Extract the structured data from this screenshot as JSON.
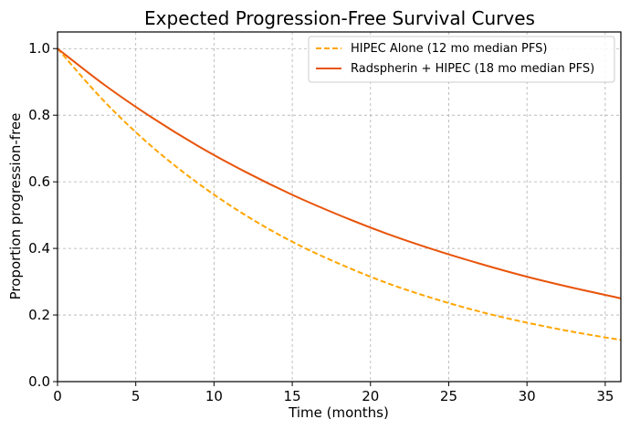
{
  "chart_data": {
    "type": "line",
    "title": "Expected Progression-Free Survival Curves",
    "xlabel": "Time (months)",
    "ylabel": "Proportion progression-free",
    "xlim": [
      0,
      36
    ],
    "ylim": [
      0,
      1.05
    ],
    "xticks": [
      "0",
      "5",
      "10",
      "15",
      "20",
      "25",
      "30",
      "35"
    ],
    "yticks": [
      "0.0",
      "0.2",
      "0.4",
      "0.6",
      "0.8",
      "1.0"
    ],
    "grid": true,
    "legend_position": "top-right",
    "x": [
      0,
      3,
      6,
      9,
      12,
      15,
      18,
      21,
      24,
      27,
      30,
      33,
      36
    ],
    "series": [
      {
        "name": "HIPEC Alone (12 mo median PFS)",
        "color": "#FFA500",
        "style": "dashed",
        "values": [
          1.0,
          0.841,
          0.707,
          0.595,
          0.5,
          0.42,
          0.354,
          0.297,
          0.25,
          0.21,
          0.177,
          0.149,
          0.125
        ]
      },
      {
        "name": "Radspherin + HIPEC (18 mo median PFS)",
        "color": "#E8540A",
        "style": "solid",
        "values": [
          1.0,
          0.891,
          0.794,
          0.707,
          0.63,
          0.561,
          0.5,
          0.445,
          0.397,
          0.354,
          0.315,
          0.281,
          0.25
        ]
      }
    ]
  }
}
